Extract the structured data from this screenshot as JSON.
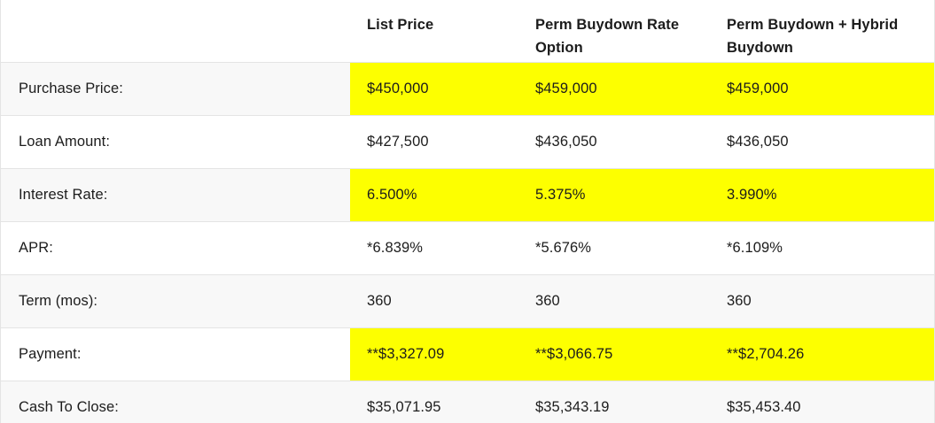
{
  "table": {
    "columns": [
      {
        "label": ""
      },
      {
        "label": "List Price"
      },
      {
        "label": "Perm Buydown Rate Option"
      },
      {
        "label": "Perm Buydown + Hybrid Buydown"
      }
    ],
    "rows": [
      {
        "label": "Purchase Price:",
        "values": [
          "$450,000",
          "$459,000",
          "$459,000"
        ],
        "highlighted": true
      },
      {
        "label": "Loan Amount:",
        "values": [
          "$427,500",
          "$436,050",
          "$436,050"
        ],
        "highlighted": false
      },
      {
        "label": "Interest Rate:",
        "values": [
          "6.500%",
          "5.375%",
          "3.990%"
        ],
        "highlighted": true
      },
      {
        "label": "APR:",
        "values": [
          "*6.839%",
          "*5.676%",
          "*6.109%"
        ],
        "highlighted": false
      },
      {
        "label": "Term (mos):",
        "values": [
          "360",
          "360",
          "360"
        ],
        "highlighted": false
      },
      {
        "label": "Payment:",
        "values": [
          "**$3,327.09",
          "**$3,066.75",
          "**$2,704.26"
        ],
        "highlighted": true
      },
      {
        "label": "Cash To Close:",
        "values": [
          "$35,071.95",
          "$35,343.19",
          "$35,453.40"
        ],
        "highlighted": false
      }
    ],
    "colors": {
      "highlight": "#fdff00",
      "stripe": "#f8f8f8",
      "border": "#e4e4e4",
      "text": "#1c1c1c"
    }
  }
}
